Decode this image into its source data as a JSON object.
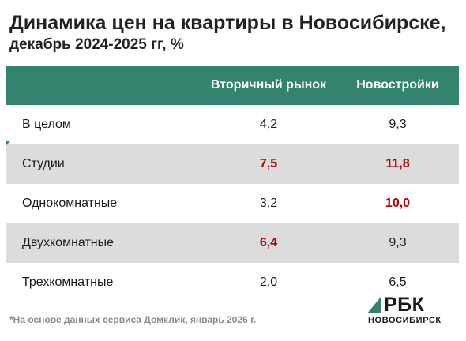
{
  "title": "Динамика цен на квартиры в Новосибирске,",
  "subtitle": "декабрь 2024-2025 гг, %",
  "table": {
    "header": {
      "label": "",
      "secondary": "Вторичный рынок",
      "new_builds": "Новостройки"
    },
    "rows": [
      {
        "label": "В целом",
        "secondary": "4,2",
        "new_builds": "9,3",
        "secondary_highlight": false,
        "new_builds_highlight": false
      },
      {
        "label": "Студии",
        "secondary": "7,5",
        "new_builds": "11,8",
        "secondary_highlight": true,
        "new_builds_highlight": true
      },
      {
        "label": "Однокомнатные",
        "secondary": "3,2",
        "new_builds": "10,0",
        "secondary_highlight": false,
        "new_builds_highlight": true
      },
      {
        "label": "Двухкомнатные",
        "secondary": "6,4",
        "new_builds": "9,3",
        "secondary_highlight": true,
        "new_builds_highlight": false
      },
      {
        "label": "Трехкомнатные",
        "secondary": "2,0",
        "new_builds": "6,5",
        "secondary_highlight": false,
        "new_builds_highlight": false
      }
    ]
  },
  "footnote": "*На основе данных сервиса Домклик, январь 2026 г.",
  "logo": {
    "brand": "РБК",
    "city": "НОВОСИБИРСК"
  },
  "colors": {
    "header_bg": "#33836f",
    "highlight": "#b10000",
    "row_shade": "#dcdcdc"
  }
}
